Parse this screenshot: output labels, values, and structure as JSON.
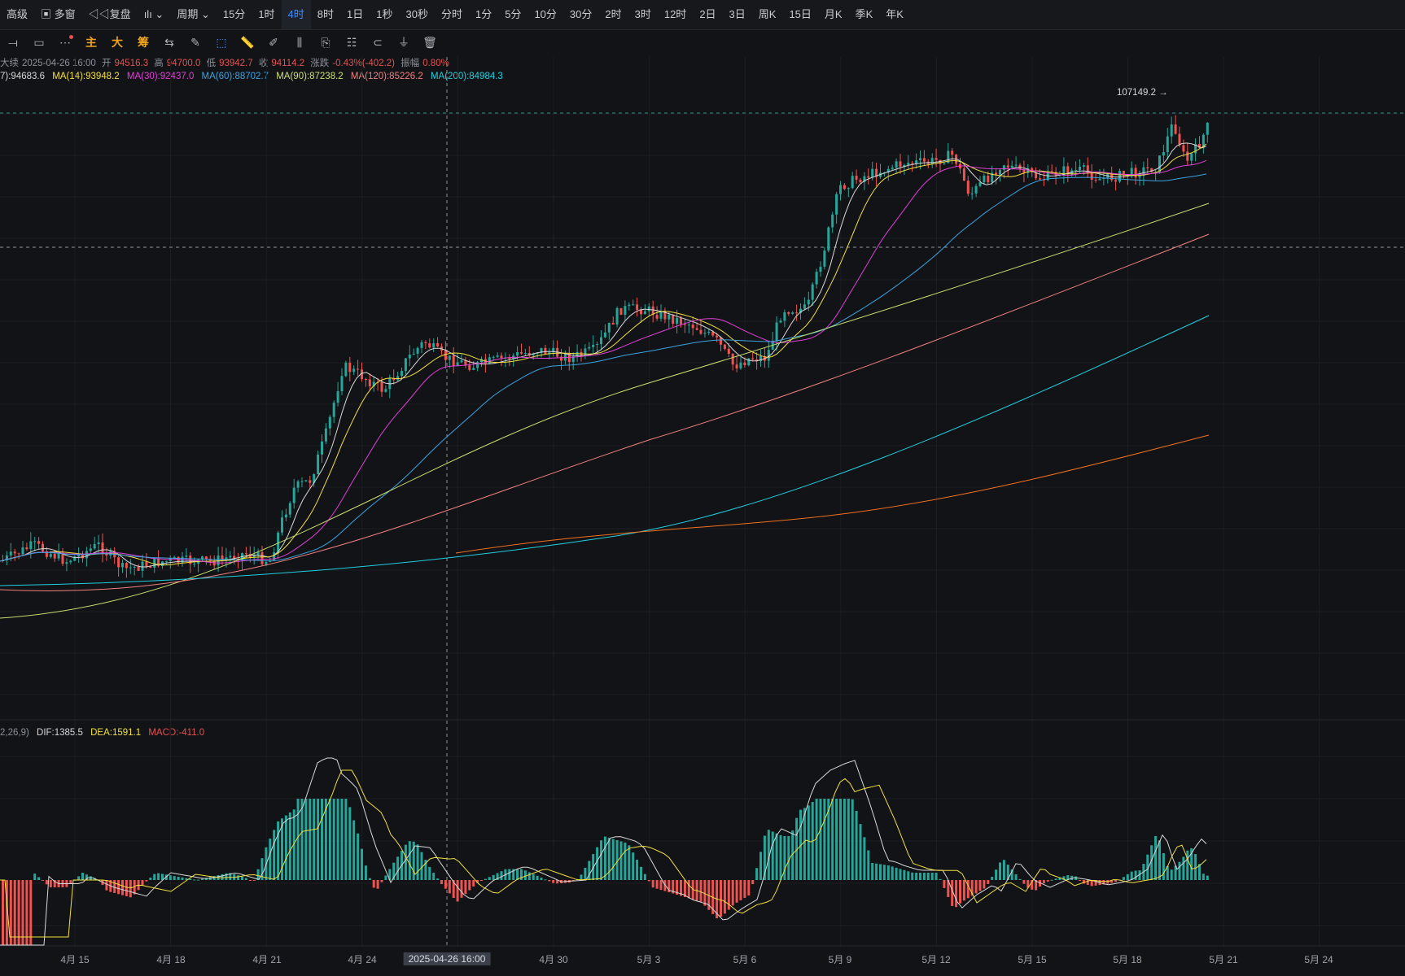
{
  "toolbar": {
    "items": [
      "高级",
      "多窗",
      "复盘",
      "周期",
      "15分",
      "1时",
      "4时",
      "8时",
      "1日",
      "1秒",
      "30秒",
      "分时",
      "1分",
      "5分",
      "10分",
      "30分",
      "2时",
      "3时",
      "12时",
      "2日",
      "3日",
      "周K",
      "15日",
      "月K",
      "季K",
      "年K"
    ],
    "active": "4时"
  },
  "tools": {
    "main": "主",
    "large": "大",
    "chips": "筹"
  },
  "info": {
    "prefix": "大续",
    "datetime": "2025-04-26 16:00",
    "open_label": "开",
    "open": "94516.3",
    "high_label": "高",
    "high": "94700.0",
    "low_label": "低",
    "low": "93942.7",
    "close_label": "收",
    "close": "94114.2",
    "change_label": "涨跌",
    "change": "-0.43%(-402.2)",
    "amp_label": "振幅",
    "amp": "0.80%"
  },
  "ma": {
    "ma7": "7):94683.6",
    "ma14": "MA(14):93948.2",
    "ma30": "MA(30):92437.0",
    "ma60": "MA(60):88702.7",
    "ma90": "MA(90):87238.2",
    "ma120": "MA(120):85226.2",
    "ma200": "MA(200):84984.3"
  },
  "macd": {
    "params": "2,26,9)",
    "dif": "DIF:1385.5",
    "dea": "DEA:1591.1",
    "macd": "MACD:-411.0"
  },
  "high_marker": "107149.2 →",
  "x_axis": {
    "labels": [
      "4月 15",
      "4月 18",
      "4月 21",
      "4月 24",
      "2025-04-26 16:00",
      "4月 30",
      "5月 3",
      "5月 6",
      "5月 9",
      "5月 12",
      "5月 15",
      "5月 18",
      "5月 21",
      "5月 24"
    ]
  },
  "colors": {
    "up": "#26a69a",
    "down": "#ef5350",
    "ma7": "#d8d8d8",
    "ma14": "#f0e040",
    "ma30": "#e040d8",
    "ma60": "#3ba3e0",
    "ma90": "#c8e070",
    "ma120": "#f08080",
    "ma200": "#20d0e0",
    "ma_extra": "#f07020"
  }
}
